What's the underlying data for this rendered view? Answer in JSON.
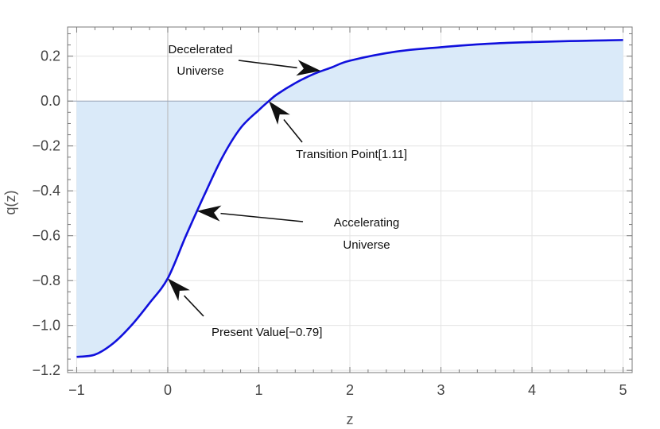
{
  "chart_data": {
    "type": "area",
    "xlabel": "z",
    "ylabel": "q(z)",
    "xlim": [
      -1.1,
      5.1
    ],
    "ylim": [
      -1.21,
      0.33
    ],
    "x_ticks": [
      -1,
      0,
      1,
      2,
      3,
      4,
      5
    ],
    "x_tick_labels": [
      "−1",
      "0",
      "1",
      "2",
      "3",
      "4",
      "5"
    ],
    "y_ticks": [
      -1.2,
      -1.0,
      -0.8,
      -0.6,
      -0.4,
      -0.2,
      0.0,
      0.2
    ],
    "y_tick_labels": [
      "−1.2",
      "−1.0",
      "−0.8",
      "−0.6",
      "−0.4",
      "−0.2",
      "0.0",
      "0.2"
    ],
    "grid": true,
    "series": [
      {
        "x": [
          -1.0,
          -0.8,
          -0.6,
          -0.4,
          -0.2,
          0.0,
          0.2,
          0.4,
          0.6,
          0.8,
          1.0,
          1.11,
          1.2,
          1.4,
          1.6,
          1.8,
          2.0,
          2.5,
          3.0,
          3.5,
          4.0,
          4.5,
          5.0
        ],
        "y": [
          -1.14,
          -1.13,
          -1.08,
          -1.0,
          -0.9,
          -0.79,
          -0.6,
          -0.42,
          -0.25,
          -0.12,
          -0.04,
          0.0,
          0.03,
          0.08,
          0.12,
          0.15,
          0.18,
          0.22,
          0.24,
          0.255,
          0.263,
          0.268,
          0.272
        ],
        "color": "#1010dd",
        "fill_color": "#daeaf9"
      }
    ],
    "annotations": [
      {
        "lines": [
          "Decelerated",
          "Universe"
        ],
        "target": [
          1.68,
          0.135
        ]
      },
      {
        "lines": [
          "Transition Point[1.11]"
        ],
        "target": [
          1.11,
          0.0
        ]
      },
      {
        "lines": [
          "Accelerating",
          "Universe"
        ],
        "target": [
          0.32,
          -0.49
        ]
      },
      {
        "lines": [
          "Present Value[−0.79]"
        ],
        "target": [
          0.0,
          -0.79
        ]
      }
    ]
  }
}
